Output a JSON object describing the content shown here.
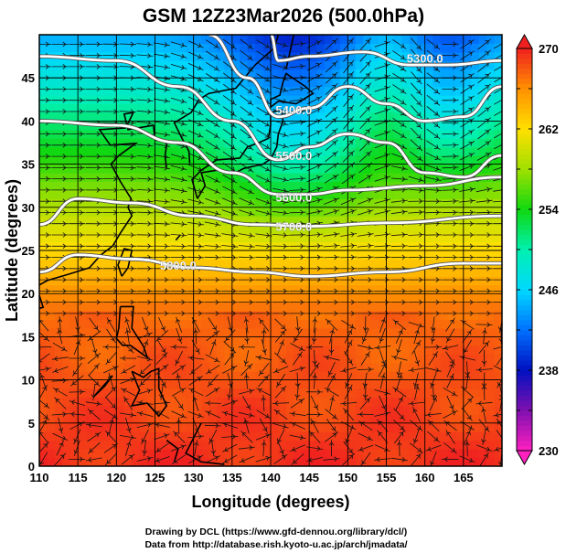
{
  "chart_data": {
    "type": "heatmap",
    "title": "GSM 12Z23Mar2026 (500.0hPa)",
    "xlabel": "Longitude (degrees)",
    "ylabel": "Latitude  (degrees)",
    "xlim": [
      110,
      170
    ],
    "ylim": [
      0,
      50
    ],
    "xticks": [
      "110",
      "115",
      "120",
      "125",
      "130",
      "135",
      "140",
      "145",
      "150",
      "155",
      "160",
      "165"
    ],
    "xtick_values": [
      110,
      115,
      120,
      125,
      130,
      135,
      140,
      145,
      150,
      155,
      160,
      165
    ],
    "yticks": [
      "0",
      "5",
      "10",
      "15",
      "20",
      "25",
      "30",
      "35",
      "40",
      "45"
    ],
    "ytick_values": [
      0,
      5,
      10,
      15,
      20,
      25,
      30,
      35,
      40,
      45
    ],
    "grid": true,
    "colorbar": {
      "ticks": [
        "230",
        "238",
        "246",
        "254",
        "262",
        "270"
      ],
      "tick_values": [
        230,
        238,
        246,
        254,
        262,
        270
      ],
      "range": [
        230,
        270
      ],
      "colors": {
        "230": "#ff20c0",
        "234": "#8010b0",
        "238": "#0010c0",
        "242": "#0070ff",
        "246": "#00d8ff",
        "250": "#00f0b0",
        "254": "#10d810",
        "258": "#a0e000",
        "262": "#ffe000",
        "266": "#ff9000",
        "270": "#f02020"
      }
    },
    "contours": [
      {
        "label": "5300.0",
        "points": [
          [
            140,
            50
          ],
          [
            141,
            47
          ],
          [
            145,
            47.5
          ],
          [
            152,
            48
          ],
          [
            158,
            46.5
          ],
          [
            163,
            46.5
          ],
          [
            170,
            47
          ]
        ]
      },
      {
        "label": "5400.0",
        "points": [
          [
            132,
            50
          ],
          [
            137,
            45
          ],
          [
            141,
            40.5
          ],
          [
            145,
            41.5
          ],
          [
            150,
            44
          ],
          [
            155,
            42
          ],
          [
            160,
            40
          ],
          [
            165,
            40.5
          ],
          [
            170,
            44
          ]
        ]
      },
      {
        "label": "5500.0",
        "points": [
          [
            110,
            47.5
          ],
          [
            120,
            47
          ],
          [
            128,
            44
          ],
          [
            135,
            40
          ],
          [
            141,
            35.5
          ],
          [
            145,
            37
          ],
          [
            150,
            38.5
          ],
          [
            155,
            37.5
          ],
          [
            160,
            34
          ],
          [
            165,
            33.5
          ],
          [
            170,
            36
          ]
        ]
      },
      {
        "label": "5600.0",
        "points": [
          [
            110,
            40
          ],
          [
            120,
            39.5
          ],
          [
            128,
            37.5
          ],
          [
            135,
            34
          ],
          [
            141,
            31.5
          ],
          [
            145,
            31.5
          ],
          [
            150,
            32
          ],
          [
            160,
            32.5
          ],
          [
            170,
            33.5
          ]
        ]
      },
      {
        "label": "5700.0",
        "points": [
          [
            110,
            28
          ],
          [
            115,
            31
          ],
          [
            122,
            30.5
          ],
          [
            130,
            29
          ],
          [
            138,
            28
          ],
          [
            145,
            27.8
          ],
          [
            155,
            28.2
          ],
          [
            170,
            29
          ]
        ]
      },
      {
        "label": "5800.0",
        "points": [
          [
            110,
            22.5
          ],
          [
            115,
            24.5
          ],
          [
            122,
            24
          ],
          [
            130,
            23
          ],
          [
            138,
            22.5
          ],
          [
            145,
            22
          ],
          [
            155,
            22.5
          ],
          [
            165,
            23.5
          ],
          [
            170,
            23.5
          ]
        ]
      }
    ],
    "contour_label_positions": [
      [
        160,
        47.3
      ],
      [
        143,
        41.3
      ],
      [
        143,
        36
      ],
      [
        143,
        31.2
      ],
      [
        143,
        27.8
      ],
      [
        128,
        23.3
      ]
    ]
  },
  "credits": {
    "line1": "Drawing by DCL (https://www.gfd-dennou.org/library/dcl/)",
    "line2": "Data from http://database.rish.kyoto-u.ac.jp/arch/jmadata/"
  }
}
